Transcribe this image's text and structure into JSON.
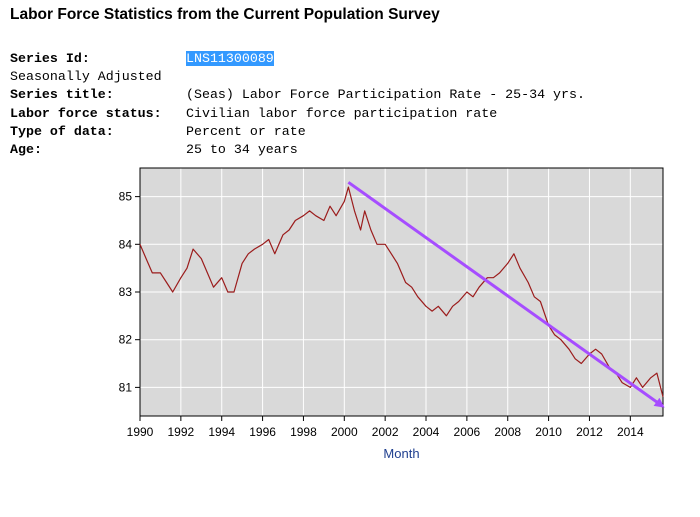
{
  "page_title": "Labor Force Statistics from the Current Population Survey",
  "meta": {
    "series_id_label": "Series Id:",
    "series_id_value": "LNS11300089",
    "seasonal": "Seasonally Adjusted",
    "series_title_label": "Series title:",
    "series_title_value": "(Seas) Labor Force Participation Rate - 25-34 yrs.",
    "status_label": "Labor force status:",
    "status_value": "Civilian labor force participation rate",
    "type_label": "Type of data:",
    "type_value": "Percent or rate",
    "age_label": "Age:",
    "age_value": "25 to 34 years"
  },
  "colors": {
    "series_line": "#9b1c1c",
    "trend_arrow": "#a64dff",
    "plot_background": "#d9d9d9",
    "grid": "#ffffff",
    "xlabel": "#1f3f8f"
  },
  "chart_data": {
    "type": "line",
    "title": "",
    "xlabel": "Month",
    "ylabel": "",
    "xlim": [
      1990,
      2015.6
    ],
    "ylim": [
      80.4,
      85.6
    ],
    "x_ticks": [
      1990,
      1992,
      1994,
      1996,
      1998,
      2000,
      2002,
      2004,
      2006,
      2008,
      2010,
      2012,
      2014
    ],
    "y_ticks": [
      81,
      82,
      83,
      84,
      85
    ],
    "grid": true,
    "legend": "none",
    "series": [
      {
        "points": [
          [
            1990.0,
            84.0
          ],
          [
            1990.3,
            83.7
          ],
          [
            1990.6,
            83.4
          ],
          [
            1991.0,
            83.4
          ],
          [
            1991.3,
            83.2
          ],
          [
            1991.6,
            83.0
          ],
          [
            1992.0,
            83.3
          ],
          [
            1992.3,
            83.5
          ],
          [
            1992.6,
            83.9
          ],
          [
            1993.0,
            83.7
          ],
          [
            1993.3,
            83.4
          ],
          [
            1993.6,
            83.1
          ],
          [
            1994.0,
            83.3
          ],
          [
            1994.3,
            83.0
          ],
          [
            1994.6,
            83.0
          ],
          [
            1995.0,
            83.6
          ],
          [
            1995.3,
            83.8
          ],
          [
            1995.6,
            83.9
          ],
          [
            1996.0,
            84.0
          ],
          [
            1996.3,
            84.1
          ],
          [
            1996.6,
            83.8
          ],
          [
            1997.0,
            84.2
          ],
          [
            1997.3,
            84.3
          ],
          [
            1997.6,
            84.5
          ],
          [
            1998.0,
            84.6
          ],
          [
            1998.3,
            84.7
          ],
          [
            1998.6,
            84.6
          ],
          [
            1999.0,
            84.5
          ],
          [
            1999.3,
            84.8
          ],
          [
            1999.6,
            84.6
          ],
          [
            2000.0,
            84.9
          ],
          [
            2000.2,
            85.2
          ],
          [
            2000.5,
            84.7
          ],
          [
            2000.8,
            84.3
          ],
          [
            2001.0,
            84.7
          ],
          [
            2001.3,
            84.3
          ],
          [
            2001.6,
            84.0
          ],
          [
            2002.0,
            84.0
          ],
          [
            2002.3,
            83.8
          ],
          [
            2002.6,
            83.6
          ],
          [
            2003.0,
            83.2
          ],
          [
            2003.3,
            83.1
          ],
          [
            2003.6,
            82.9
          ],
          [
            2004.0,
            82.7
          ],
          [
            2004.3,
            82.6
          ],
          [
            2004.6,
            82.7
          ],
          [
            2005.0,
            82.5
          ],
          [
            2005.3,
            82.7
          ],
          [
            2005.6,
            82.8
          ],
          [
            2006.0,
            83.0
          ],
          [
            2006.3,
            82.9
          ],
          [
            2006.6,
            83.1
          ],
          [
            2007.0,
            83.3
          ],
          [
            2007.3,
            83.3
          ],
          [
            2007.6,
            83.4
          ],
          [
            2008.0,
            83.6
          ],
          [
            2008.3,
            83.8
          ],
          [
            2008.6,
            83.5
          ],
          [
            2009.0,
            83.2
          ],
          [
            2009.3,
            82.9
          ],
          [
            2009.6,
            82.8
          ],
          [
            2010.0,
            82.3
          ],
          [
            2010.3,
            82.1
          ],
          [
            2010.6,
            82.0
          ],
          [
            2011.0,
            81.8
          ],
          [
            2011.3,
            81.6
          ],
          [
            2011.6,
            81.5
          ],
          [
            2012.0,
            81.7
          ],
          [
            2012.3,
            81.8
          ],
          [
            2012.6,
            81.7
          ],
          [
            2013.0,
            81.4
          ],
          [
            2013.3,
            81.3
          ],
          [
            2013.6,
            81.1
          ],
          [
            2014.0,
            81.0
          ],
          [
            2014.3,
            81.2
          ],
          [
            2014.6,
            81.0
          ],
          [
            2015.0,
            81.2
          ],
          [
            2015.3,
            81.3
          ],
          [
            2015.6,
            80.8
          ]
        ]
      }
    ],
    "annotations": [
      {
        "type": "arrow",
        "from": [
          2000.2,
          85.3
        ],
        "to": [
          2015.6,
          80.6
        ]
      }
    ]
  }
}
